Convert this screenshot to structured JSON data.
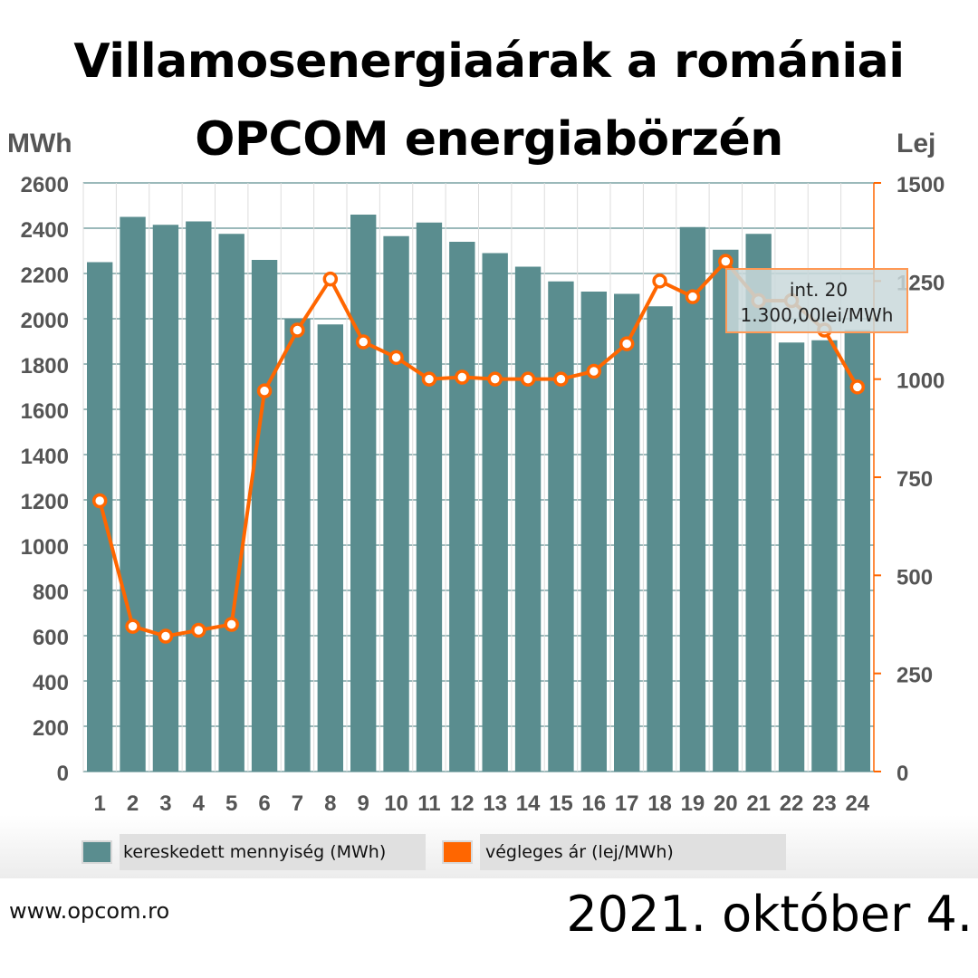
{
  "title": {
    "line1": "Villamosenergiaárak a romániai",
    "line2": "OPCOM energiabörzén"
  },
  "chart_data": {
    "type": "bar",
    "categories": [
      "1",
      "2",
      "3",
      "4",
      "5",
      "6",
      "7",
      "8",
      "9",
      "10",
      "11",
      "12",
      "13",
      "14",
      "15",
      "16",
      "17",
      "18",
      "19",
      "20",
      "21",
      "22",
      "23",
      "24"
    ],
    "series": [
      {
        "name": "kereskedett mennyiség (MWh)",
        "type": "bar",
        "axis": "left",
        "color": "#5a8d8f",
        "values": [
          2250,
          2450,
          2415,
          2430,
          2375,
          2260,
          2000,
          1975,
          2460,
          2365,
          2425,
          2340,
          2290,
          2230,
          2165,
          2120,
          2110,
          2055,
          2405,
          2305,
          2375,
          1895,
          1905,
          1950
        ]
      },
      {
        "name": "végleges ár (lej/MWh)",
        "type": "line",
        "axis": "right",
        "color": "#ff6600",
        "values": [
          690,
          370,
          345,
          360,
          375,
          970,
          1125,
          1255,
          1095,
          1055,
          1000,
          1005,
          1000,
          1000,
          1000,
          1020,
          1090,
          1250,
          1210,
          1300,
          1200,
          1200,
          1125,
          980
        ]
      }
    ],
    "y_left": {
      "label": "MWh",
      "ylim": [
        0,
        2600
      ],
      "ticks": [
        0,
        200,
        400,
        600,
        800,
        1000,
        1200,
        1400,
        1600,
        1800,
        2000,
        2200,
        2400,
        2600
      ]
    },
    "y_right": {
      "label": "Lej",
      "ylim": [
        0,
        1500
      ],
      "ticks": [
        0,
        250,
        500,
        750,
        1000,
        1250,
        1500
      ]
    },
    "tooltip": {
      "line1": "int. 20",
      "line2": "1.300,00lei/MWh"
    },
    "grid": true,
    "legend": "bottom"
  },
  "legend": {
    "quantity_label": "kereskedett mennyiség (MWh)",
    "price_label": "végleges ár (lej/MWh)"
  },
  "footer": {
    "source": "www.opcom.ro",
    "date": "2021. október 4."
  }
}
